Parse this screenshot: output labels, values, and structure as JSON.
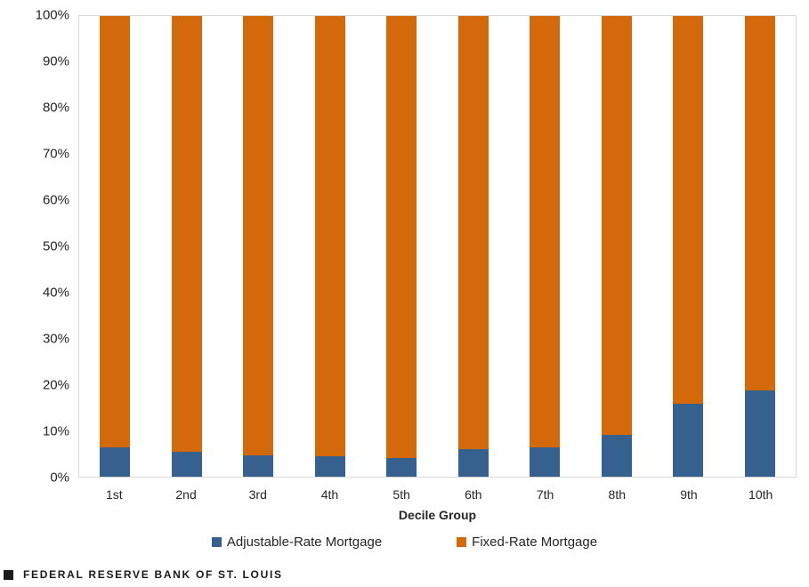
{
  "chart_data": {
    "type": "bar",
    "stacked": true,
    "title": "",
    "categories": [
      "1st",
      "2nd",
      "3rd",
      "4th",
      "5th",
      "6th",
      "7th",
      "8th",
      "9th",
      "10th"
    ],
    "series": [
      {
        "name": "Adjustable-Rate Mortgage",
        "color": "#36618E",
        "values": [
          6.4,
          5.5,
          4.6,
          4.4,
          4.0,
          6.0,
          6.3,
          9.0,
          15.8,
          18.8
        ]
      },
      {
        "name": "Fixed-Rate Mortgage",
        "color": "#D4690B",
        "values": [
          93.6,
          94.5,
          95.4,
          95.6,
          96.0,
          94.0,
          93.7,
          91.0,
          84.2,
          81.2
        ]
      }
    ],
    "xlabel": "Decile Group",
    "ylabel": "",
    "ylim": [
      0,
      100
    ],
    "ytick_labels": [
      "0%",
      "10%",
      "20%",
      "30%",
      "40%",
      "50%",
      "60%",
      "70%",
      "80%",
      "90%",
      "100%"
    ],
    "grid": false,
    "legend_position": "bottom"
  },
  "colors": {
    "adjustable": "#36618E",
    "fixed": "#D4690B",
    "plot_border": "#D9D9D9",
    "axis_text": "#262626",
    "footer_text": "#1A1A1A"
  },
  "footer": {
    "source_label": "FEDERAL RESERVE BANK OF ST. LOUIS"
  }
}
